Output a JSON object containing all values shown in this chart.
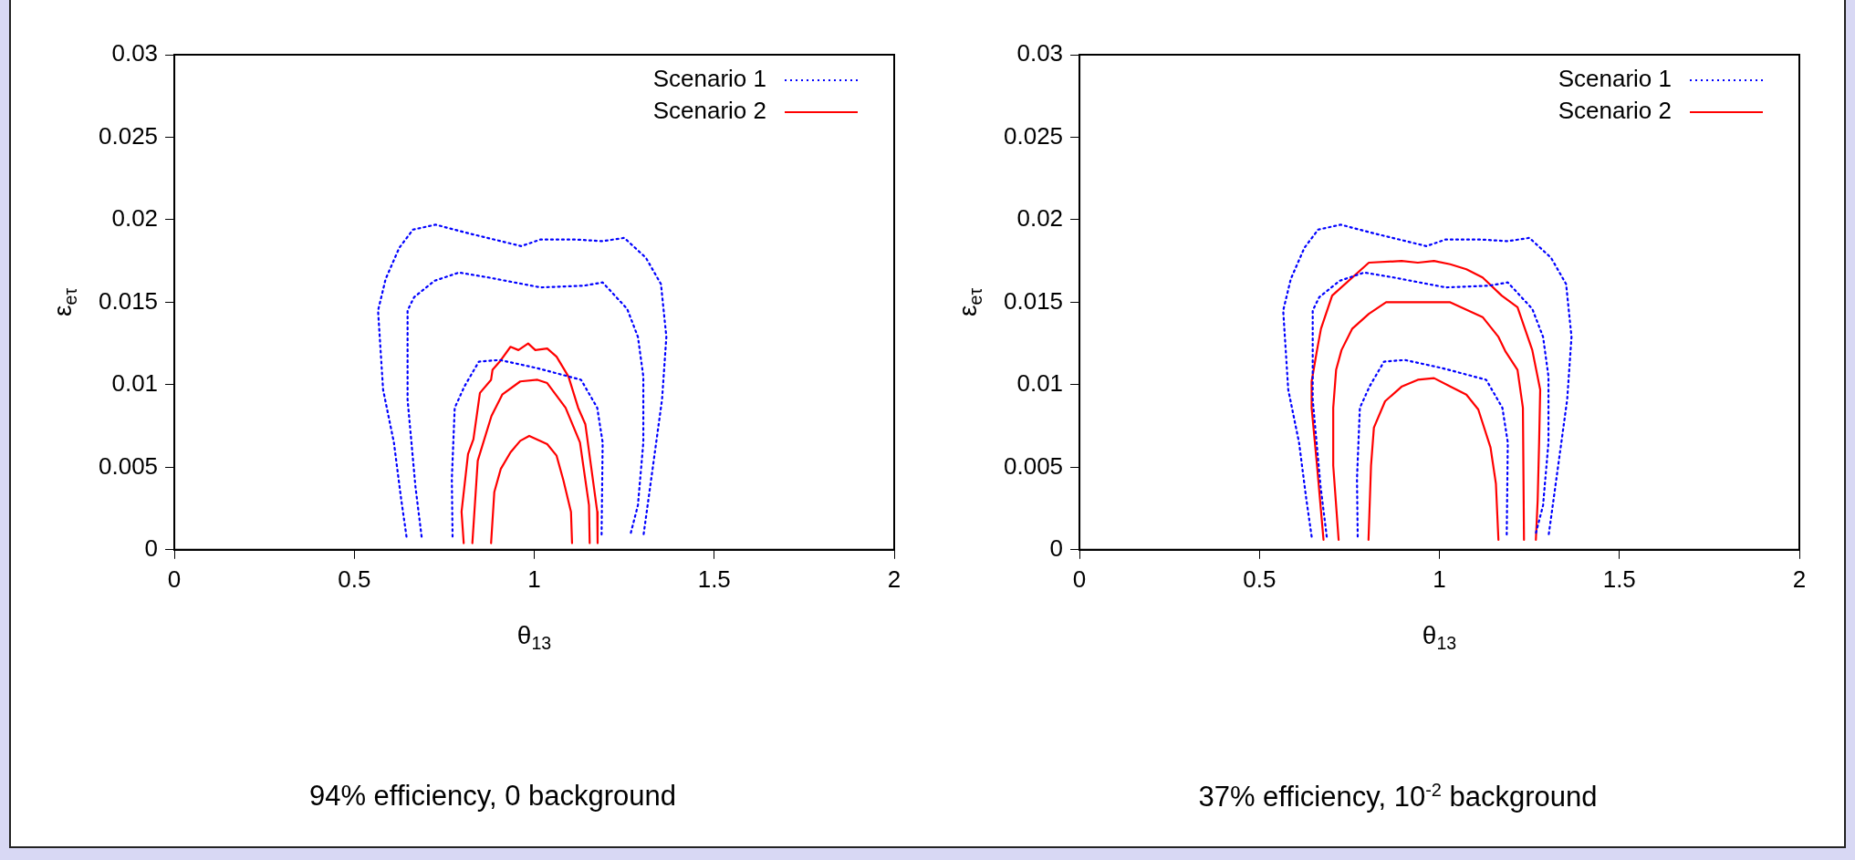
{
  "chart_data": [
    {
      "type": "line",
      "xlabel": "θ$_{13}$",
      "ylabel": "ε$_{eτ}$",
      "xlim": [
        0,
        2
      ],
      "xticks": [
        0,
        0.5,
        1,
        1.5,
        2
      ],
      "ylim": [
        0,
        0.03
      ],
      "yticks": [
        0,
        0.005,
        0.01,
        0.015,
        0.02,
        0.025,
        0.03
      ],
      "grid": false,
      "legend": "top right",
      "marker": "none",
      "annotations": [
        "94% efficiency, 0 background"
      ],
      "series": [
        {
          "name": "Scenario 1",
          "color": "#0000ff",
          "line_style": "dotted",
          "x": [
            0.645,
            0.63,
            0.61,
            0.58,
            0.566,
            0.587,
            0.625,
            0.663,
            0.726,
            0.813,
            0.964,
            1.017,
            1.114,
            1.19,
            1.25,
            1.31,
            1.352,
            1.367,
            1.355,
            1.325,
            1.303
          ],
          "values": [
            0.0008,
            0.0031,
            0.0065,
            0.0097,
            0.0145,
            0.0164,
            0.0183,
            0.0194,
            0.0197,
            0.0192,
            0.0184,
            0.0188,
            0.0188,
            0.0187,
            0.0189,
            0.0177,
            0.0161,
            0.0129,
            0.0091,
            0.0043,
            0.0008
          ]
        },
        {
          "color": "#0000ff",
          "line_style": "dotted",
          "x": [
            0.687,
            0.67,
            0.648,
            0.648,
            0.666,
            0.723,
            0.791,
            0.873,
            1.017,
            1.137,
            1.19,
            1.258,
            1.288,
            1.303,
            1.303,
            1.288,
            1.268
          ],
          "values": [
            0.0008,
            0.0038,
            0.0091,
            0.0145,
            0.0153,
            0.0163,
            0.0168,
            0.0165,
            0.0159,
            0.016,
            0.0162,
            0.0146,
            0.0129,
            0.0105,
            0.0065,
            0.0027,
            0.001
          ]
        },
        {
          "color": "#0000ff",
          "line_style": "dotted",
          "x": [
            0.773,
            0.771,
            0.779,
            0.806,
            0.846,
            0.904,
            1.009,
            1.13,
            1.175,
            1.19,
            1.187
          ],
          "values": [
            0.0008,
            0.0043,
            0.0086,
            0.0099,
            0.0114,
            0.0115,
            0.011,
            0.0103,
            0.0086,
            0.0065,
            0.0008
          ]
        },
        {
          "name": "Scenario 2",
          "color": "#ff0000",
          "line_style": "solid",
          "x": [
            0.804,
            0.798,
            0.816,
            0.831,
            0.849,
            0.88,
            0.884,
            0.904,
            0.934,
            0.956,
            0.983,
            1.003,
            1.036,
            1.062,
            1.095,
            1.122,
            1.142,
            1.175,
            1.176
          ],
          "values": [
            0.0004,
            0.0023,
            0.0058,
            0.0067,
            0.0095,
            0.0103,
            0.0109,
            0.0114,
            0.0123,
            0.0121,
            0.0125,
            0.0121,
            0.0122,
            0.0117,
            0.0105,
            0.0086,
            0.0076,
            0.0023,
            0.0004
          ]
        },
        {
          "color": "#ff0000",
          "line_style": "solid",
          "x": [
            0.828,
            0.843,
            0.881,
            0.911,
            0.961,
            1.009,
            1.036,
            1.087,
            1.127,
            1.152,
            1.154
          ],
          "values": [
            0.0004,
            0.0054,
            0.0081,
            0.0094,
            0.0102,
            0.0103,
            0.0101,
            0.0086,
            0.0065,
            0.0027,
            0.0004
          ]
        },
        {
          "color": "#ff0000",
          "line_style": "solid",
          "x": [
            0.88,
            0.889,
            0.907,
            0.934,
            0.961,
            0.986,
            1.036,
            1.062,
            1.081,
            1.102,
            1.105
          ],
          "values": [
            0.0004,
            0.0035,
            0.0049,
            0.0059,
            0.0066,
            0.0069,
            0.0064,
            0.0057,
            0.0042,
            0.0023,
            0.0004
          ]
        }
      ]
    },
    {
      "type": "line",
      "xlabel": "θ$_{13}$",
      "ylabel": "ε$_{eτ}$",
      "xlim": [
        0,
        2
      ],
      "xticks": [
        0,
        0.5,
        1,
        1.5,
        2
      ],
      "ylim": [
        0,
        0.03
      ],
      "yticks": [
        0,
        0.005,
        0.01,
        0.015,
        0.02,
        0.025,
        0.03
      ],
      "grid": false,
      "legend": "top right",
      "marker": "none",
      "annotations": [
        "37% efficiency, 10$^{-2}$ background"
      ],
      "series": [
        {
          "name": "Scenario 1",
          "color": "#0000ff",
          "line_style": "dotted",
          "x": [
            0.645,
            0.63,
            0.61,
            0.58,
            0.566,
            0.587,
            0.625,
            0.663,
            0.726,
            0.813,
            0.964,
            1.017,
            1.114,
            1.19,
            1.25,
            1.31,
            1.352,
            1.367,
            1.355,
            1.325,
            1.303
          ],
          "values": [
            0.0008,
            0.0031,
            0.0065,
            0.0097,
            0.0145,
            0.0164,
            0.0183,
            0.0194,
            0.0197,
            0.0192,
            0.0184,
            0.0188,
            0.0188,
            0.0187,
            0.0189,
            0.0177,
            0.0161,
            0.0129,
            0.0091,
            0.0043,
            0.0008
          ]
        },
        {
          "color": "#0000ff",
          "line_style": "dotted",
          "x": [
            0.687,
            0.67,
            0.648,
            0.648,
            0.666,
            0.723,
            0.791,
            0.873,
            1.017,
            1.137,
            1.19,
            1.258,
            1.288,
            1.303,
            1.303,
            1.288,
            1.268
          ],
          "values": [
            0.0008,
            0.0038,
            0.0091,
            0.0145,
            0.0153,
            0.0163,
            0.0168,
            0.0165,
            0.0159,
            0.016,
            0.0162,
            0.0146,
            0.0129,
            0.0105,
            0.0065,
            0.0027,
            0.001
          ]
        },
        {
          "color": "#0000ff",
          "line_style": "dotted",
          "x": [
            0.773,
            0.771,
            0.779,
            0.806,
            0.846,
            0.904,
            1.009,
            1.13,
            1.175,
            1.19,
            1.187
          ],
          "values": [
            0.0008,
            0.0043,
            0.0086,
            0.0099,
            0.0114,
            0.0115,
            0.011,
            0.0103,
            0.0086,
            0.0065,
            0.0008
          ]
        },
        {
          "name": "Scenario 2",
          "color": "#ff0000",
          "line_style": "solid",
          "x": [
            0.678,
            0.66,
            0.645,
            0.645,
            0.66,
            0.671,
            0.702,
            0.804,
            0.895,
            0.94,
            0.985,
            1.03,
            1.075,
            1.12,
            1.173,
            1.217,
            1.258,
            1.28,
            1.277,
            1.273,
            1.268
          ],
          "values": [
            0.0006,
            0.0051,
            0.0086,
            0.0102,
            0.0121,
            0.0134,
            0.0154,
            0.0174,
            0.0175,
            0.0174,
            0.0175,
            0.0173,
            0.017,
            0.0165,
            0.0154,
            0.0147,
            0.0121,
            0.0097,
            0.0065,
            0.003,
            0.0006
          ]
        },
        {
          "color": "#ff0000",
          "line_style": "solid",
          "x": [
            0.72,
            0.705,
            0.705,
            0.713,
            0.728,
            0.758,
            0.804,
            0.852,
            0.985,
            1.03,
            1.12,
            1.164,
            1.184,
            1.217,
            1.232,
            1.235
          ],
          "values": [
            0.0006,
            0.0051,
            0.0086,
            0.0109,
            0.0121,
            0.0134,
            0.0143,
            0.015,
            0.015,
            0.015,
            0.0141,
            0.0129,
            0.012,
            0.0109,
            0.0086,
            0.0006
          ]
        },
        {
          "color": "#ff0000",
          "line_style": "solid",
          "x": [
            0.803,
            0.81,
            0.818,
            0.849,
            0.896,
            0.94,
            0.985,
            1.03,
            1.075,
            1.108,
            1.142,
            1.157,
            1.164
          ],
          "values": [
            0.0006,
            0.0051,
            0.0074,
            0.009,
            0.0099,
            0.0103,
            0.0104,
            0.0099,
            0.0094,
            0.0085,
            0.0062,
            0.004,
            0.0006
          ]
        }
      ]
    }
  ]
}
